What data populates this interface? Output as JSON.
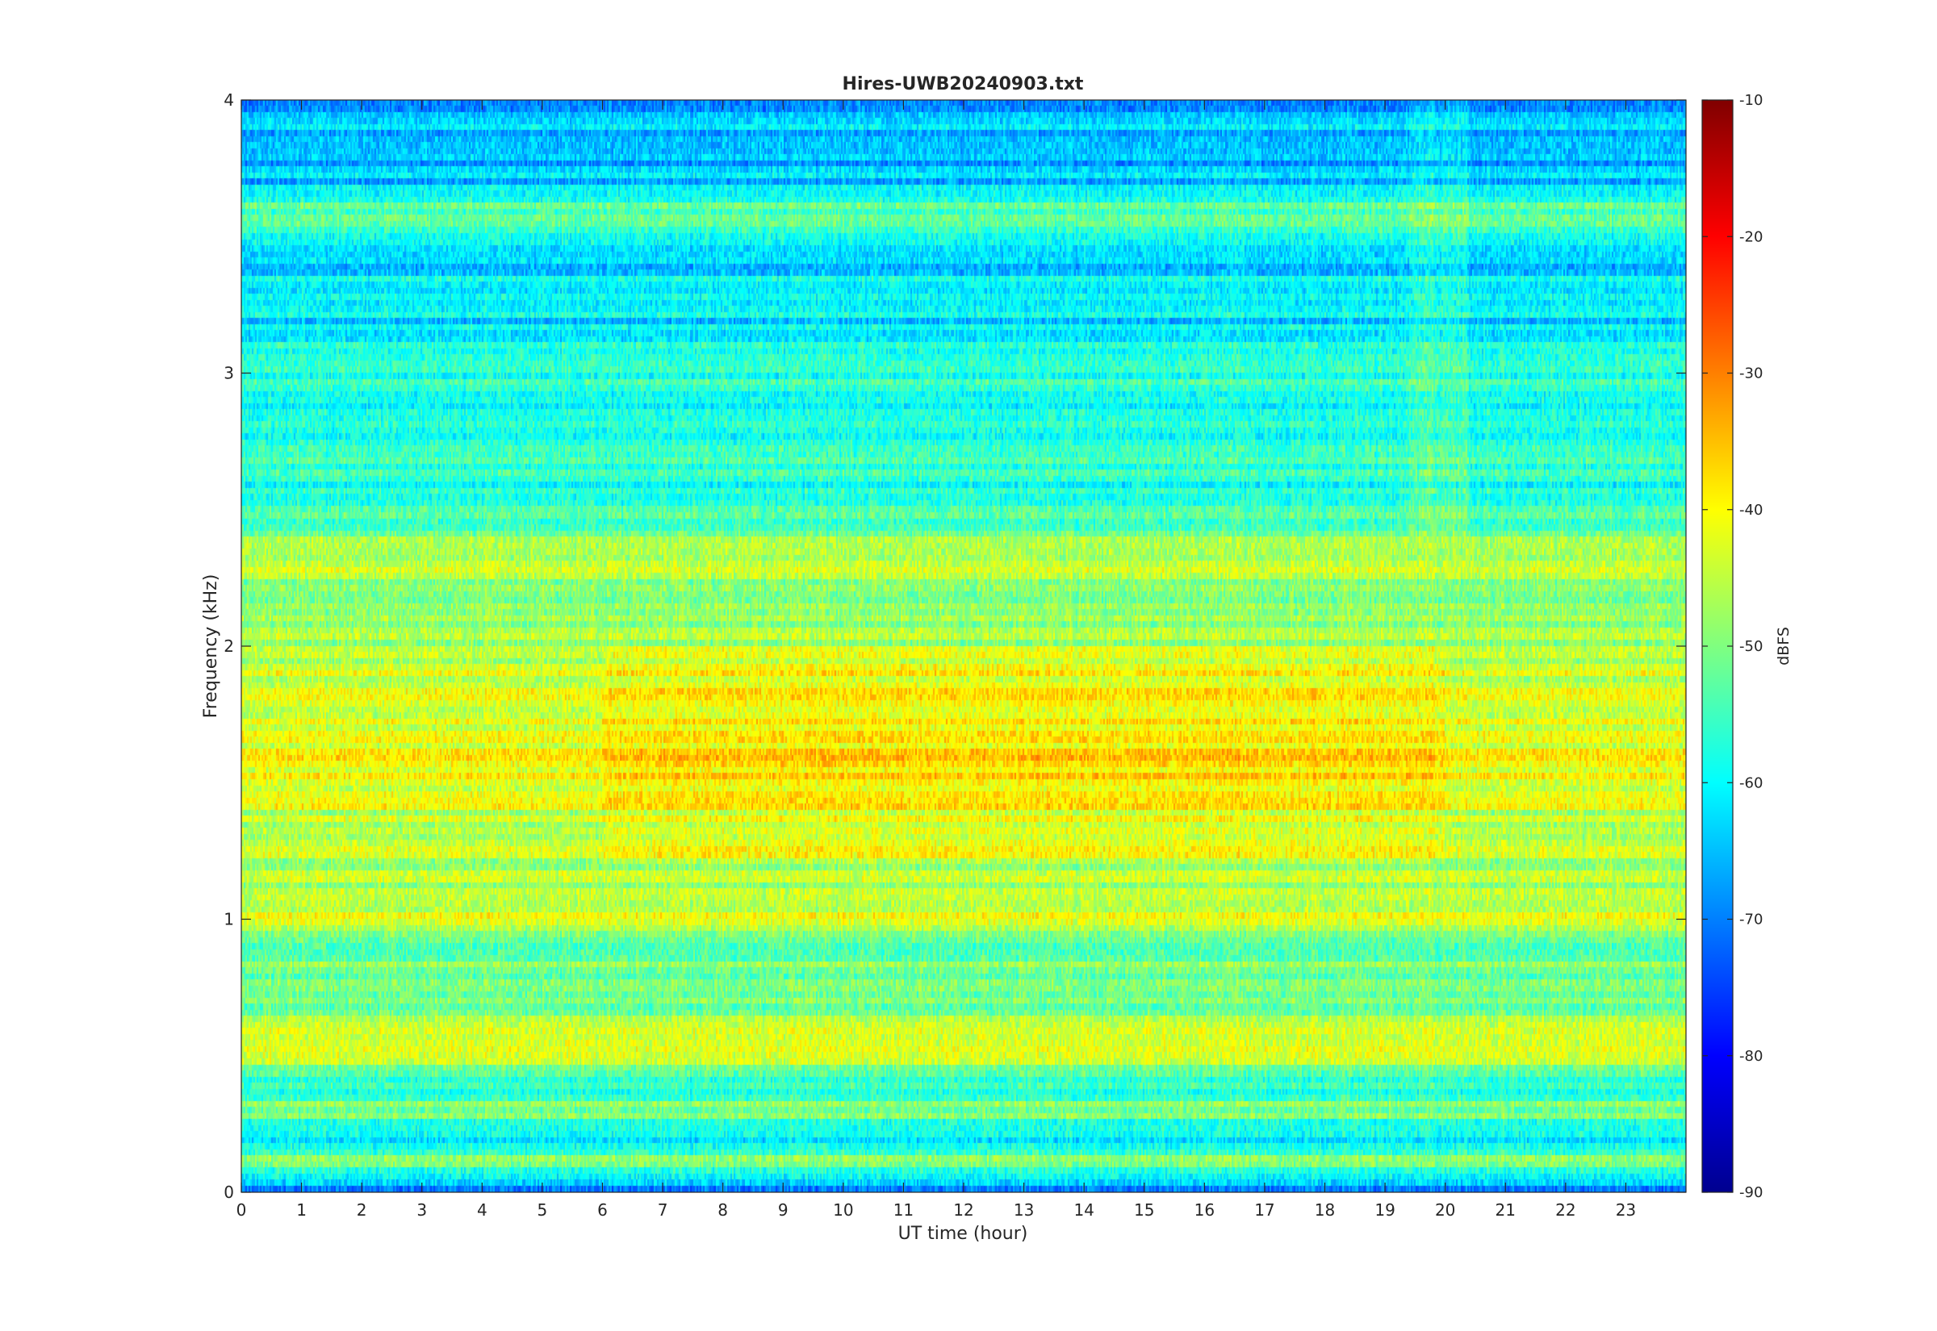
{
  "chart_data": {
    "type": "heatmap",
    "title": "Hires-UWB20240903.txt",
    "xlabel": "UT time (hour)",
    "ylabel": "Frequency (kHz)",
    "xlim": [
      0,
      24
    ],
    "ylim": [
      0,
      4
    ],
    "x_ticks": [
      "0",
      "1",
      "2",
      "3",
      "4",
      "5",
      "6",
      "7",
      "8",
      "9",
      "10",
      "11",
      "12",
      "13",
      "14",
      "15",
      "16",
      "17",
      "18",
      "19",
      "20",
      "21",
      "22",
      "23"
    ],
    "y_ticks": [
      "0",
      "1",
      "2",
      "3",
      "4"
    ],
    "colorbar": {
      "label": "dBFS",
      "range": [
        -90,
        -10
      ],
      "ticks": [
        "-90",
        "-80",
        "-70",
        "-60",
        "-50",
        "-40",
        "-30",
        "-20",
        "-10"
      ],
      "colormap": "jet"
    },
    "frequency_profile_khz": [
      0.0,
      0.1,
      0.2,
      0.3,
      0.4,
      0.5,
      0.6,
      0.7,
      0.8,
      0.9,
      1.0,
      1.1,
      1.2,
      1.3,
      1.4,
      1.5,
      1.6,
      1.7,
      1.8,
      1.9,
      2.0,
      2.1,
      2.2,
      2.3,
      2.4,
      2.5,
      2.6,
      2.7,
      2.8,
      2.9,
      3.0,
      3.1,
      3.2,
      3.3,
      3.4,
      3.5,
      3.6,
      3.7,
      3.8,
      3.9,
      4.0
    ],
    "level_profile_dbfs": [
      -72,
      -48,
      -60,
      -50,
      -56,
      -42,
      -44,
      -52,
      -50,
      -54,
      -44,
      -46,
      -48,
      -44,
      -44,
      -42,
      -40,
      -44,
      -42,
      -44,
      -46,
      -50,
      -52,
      -44,
      -50,
      -56,
      -58,
      -56,
      -58,
      -60,
      -56,
      -60,
      -62,
      -58,
      -64,
      -58,
      -54,
      -64,
      -66,
      -64,
      -66
    ]
  }
}
